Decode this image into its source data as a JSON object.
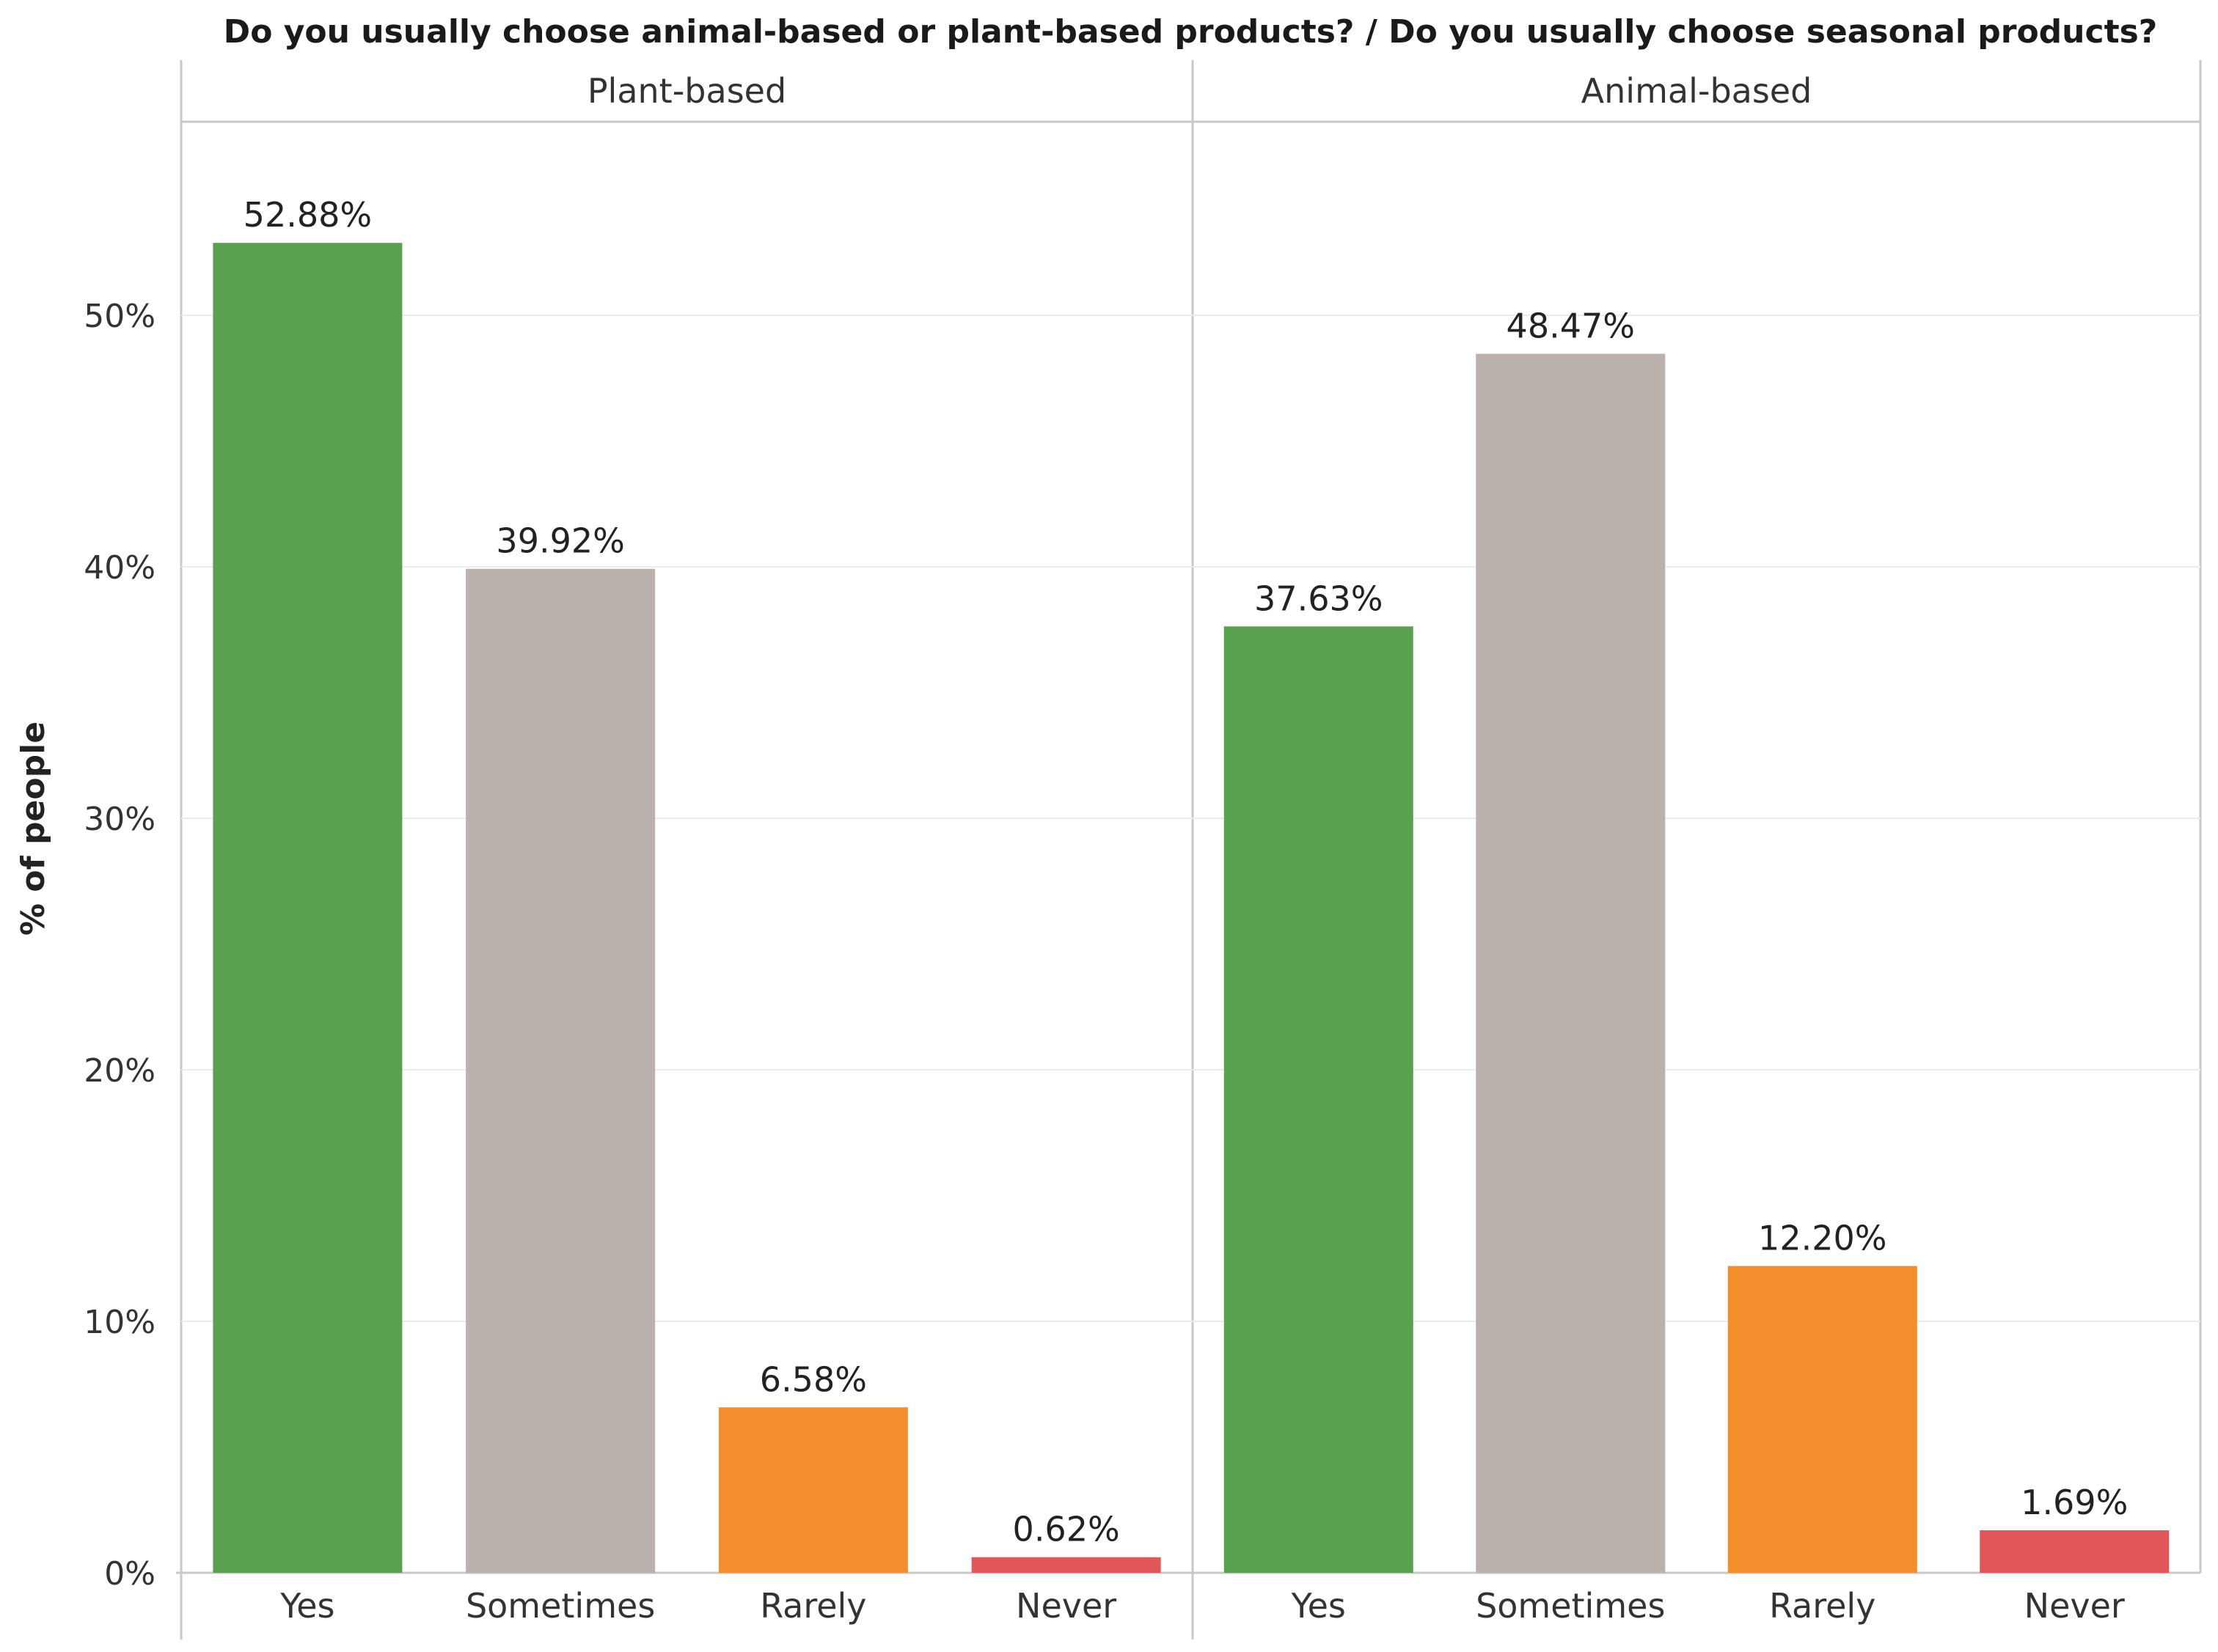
{
  "chart_data": {
    "type": "bar",
    "title": "Do you usually choose animal-based or plant-based products?  /  Do you usually choose seasonal products?",
    "ylabel": "% of people",
    "xlabel": "",
    "ylim": [
      0,
      60
    ],
    "yticks": [
      0,
      10,
      20,
      30,
      40,
      50
    ],
    "ytick_labels": [
      "0%",
      "10%",
      "20%",
      "30%",
      "40%",
      "50%"
    ],
    "grid": true,
    "categories": [
      "Yes",
      "Sometimes",
      "Rarely",
      "Never"
    ],
    "category_colors": [
      "#59a14f",
      "#bab0ac",
      "#f28e2b",
      "#e15759"
    ],
    "panels": [
      {
        "name": "Plant-based",
        "values": [
          52.88,
          39.92,
          6.58,
          0.62
        ],
        "labels": [
          "52.88%",
          "39.92%",
          "6.58%",
          "0.62%"
        ]
      },
      {
        "name": "Animal-based",
        "values": [
          37.63,
          48.47,
          12.2,
          1.69
        ],
        "labels": [
          "37.63%",
          "48.47%",
          "12.20%",
          "1.69%"
        ]
      }
    ]
  }
}
